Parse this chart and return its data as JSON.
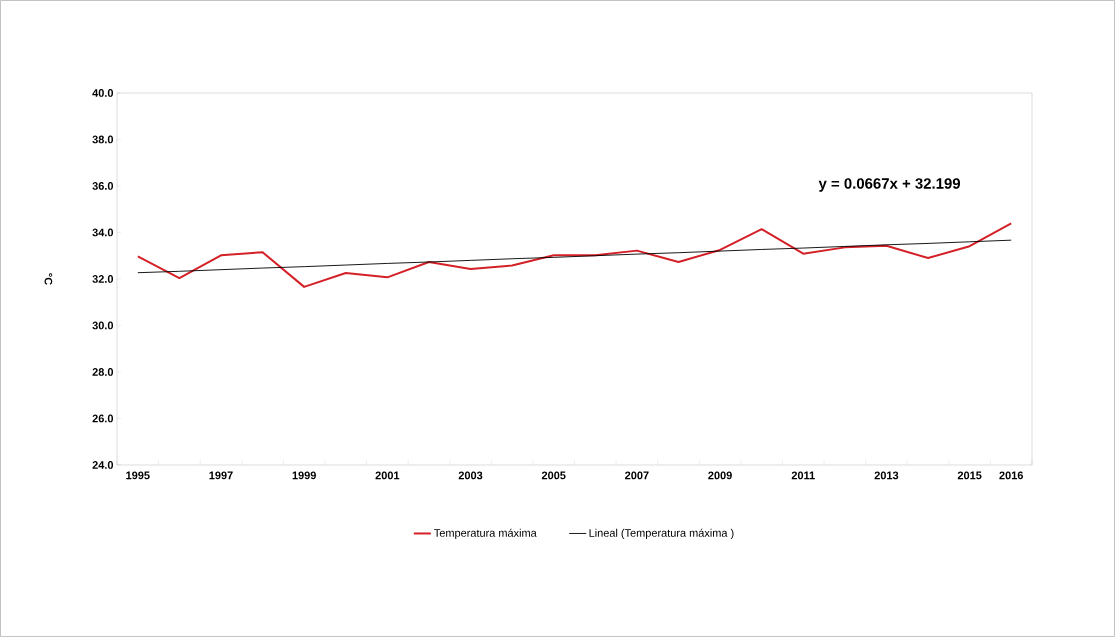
{
  "chart_data": {
    "type": "line",
    "ylabel": "°C",
    "categories": [
      "1995",
      null,
      "1997",
      null,
      "1999",
      null,
      "2001",
      null,
      "2003",
      null,
      "2005",
      null,
      "2007",
      null,
      "2009",
      null,
      "2011",
      null,
      "2013",
      null,
      "2015",
      "2016"
    ],
    "series": [
      {
        "name": "Temperatura máxima",
        "color": "#d42027",
        "values": [
          32.97,
          32.04,
          33.02,
          33.15,
          31.66,
          32.26,
          32.07,
          32.73,
          32.43,
          32.58,
          33.02,
          33.02,
          33.22,
          32.73,
          33.25,
          34.14,
          33.09,
          33.36,
          33.43,
          32.9,
          33.41,
          34.39
        ]
      },
      {
        "name": "Lineal (Temperatura máxima )",
        "color": "#000000",
        "values": [
          32.27,
          32.33,
          32.4,
          32.47,
          32.53,
          32.6,
          32.67,
          32.73,
          32.8,
          32.87,
          32.93,
          33.0,
          33.07,
          33.13,
          33.2,
          33.27,
          33.33,
          33.4,
          33.47,
          33.53,
          33.6,
          33.67
        ]
      }
    ],
    "ylim": [
      24,
      40
    ],
    "yticks": [
      {
        "value": 24,
        "label": "24.0"
      },
      {
        "value": 26,
        "label": "26.0"
      },
      {
        "value": 28,
        "label": "28.0"
      },
      {
        "value": 30,
        "label": "30.0"
      },
      {
        "value": 32,
        "label": "32.0"
      },
      {
        "value": 34,
        "label": "34.0"
      },
      {
        "value": 36,
        "label": "36.0"
      },
      {
        "value": 38,
        "label": "38.0"
      },
      {
        "value": 40,
        "label": "40.0"
      }
    ],
    "annotations": [
      "y = 0.0667x + 32.199"
    ],
    "legend": "bottom",
    "marker": "none",
    "line_style": "solid"
  }
}
